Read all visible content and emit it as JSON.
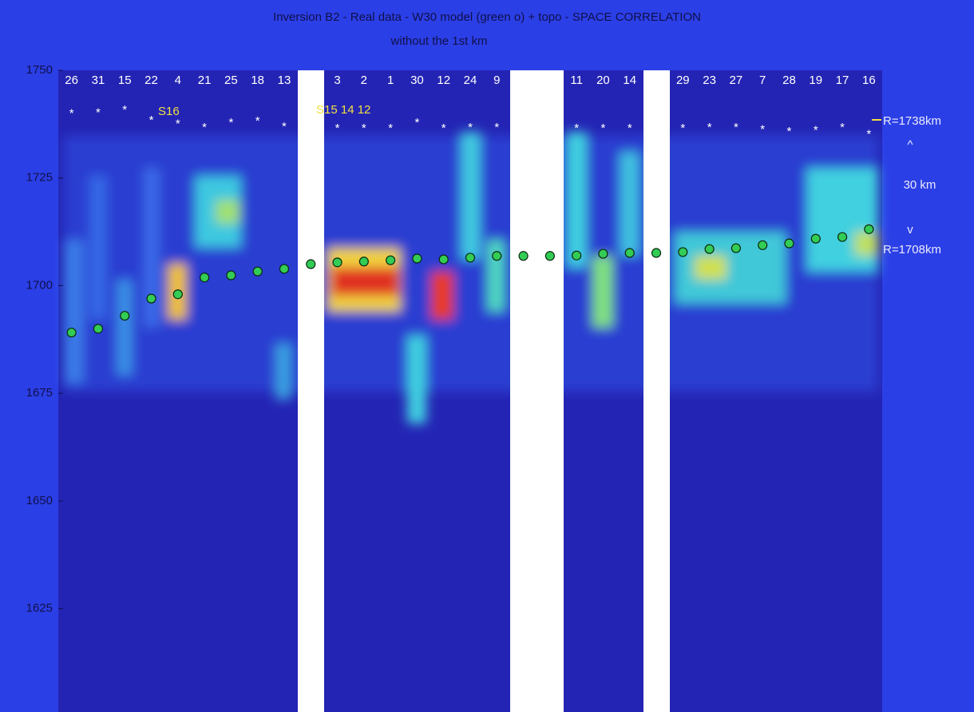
{
  "chart_data": {
    "type": "scatter",
    "title": "Inversion B2 -  Real data  -   W30 model  (green o)  +   topo    -    SPACE CORRELATION",
    "subtitle": "without  the  1st  km",
    "categories": [
      "26",
      "31",
      "15",
      "22",
      "4",
      "21",
      "25",
      "18",
      "13",
      null,
      "3",
      "2",
      "1",
      "30",
      "12",
      "24",
      "9",
      null,
      null,
      "11",
      "20",
      "14",
      null,
      "29",
      "23",
      "27",
      "7",
      "28",
      "19",
      "17",
      "16"
    ],
    "series": [
      {
        "marker": "star",
        "color": "#ffffff",
        "values": [
          1740.4,
          1740.6,
          1741.3,
          1738.9,
          1738,
          1737.2,
          1738.3,
          1738.7,
          1737.4,
          1735.9,
          1737,
          1737,
          1737,
          1738.3,
          1737,
          1737.2,
          1737.2,
          1737,
          1737,
          1737,
          1737,
          1737,
          1737,
          1737,
          1737.2,
          1737.2,
          1736.7,
          1736.3,
          1736.5,
          1737.2,
          1735.6
        ]
      },
      {
        "marker": "circle",
        "color": "#33cc55",
        "values": [
          1689.1,
          1690,
          1693,
          1697,
          1698,
          1701.9,
          1702.4,
          1703.3,
          1703.9,
          1705,
          1705.4,
          1705.6,
          1705.9,
          1706.3,
          1706.1,
          1706.5,
          1706.9,
          1706.9,
          1706.9,
          1707,
          1707.4,
          1707.6,
          1707.6,
          1707.8,
          1708.5,
          1708.7,
          1709.4,
          1709.8,
          1710.9,
          1711.3,
          1713.1
        ]
      }
    ],
    "annotations": [
      "S16",
      "S15 14 12",
      "R=1738km",
      "^",
      "30 km",
      "v",
      "R=1708km"
    ],
    "ylim": [
      1601,
      1750
    ],
    "yticks": [
      1750,
      1725,
      1700,
      1675,
      1650,
      1625
    ]
  }
}
